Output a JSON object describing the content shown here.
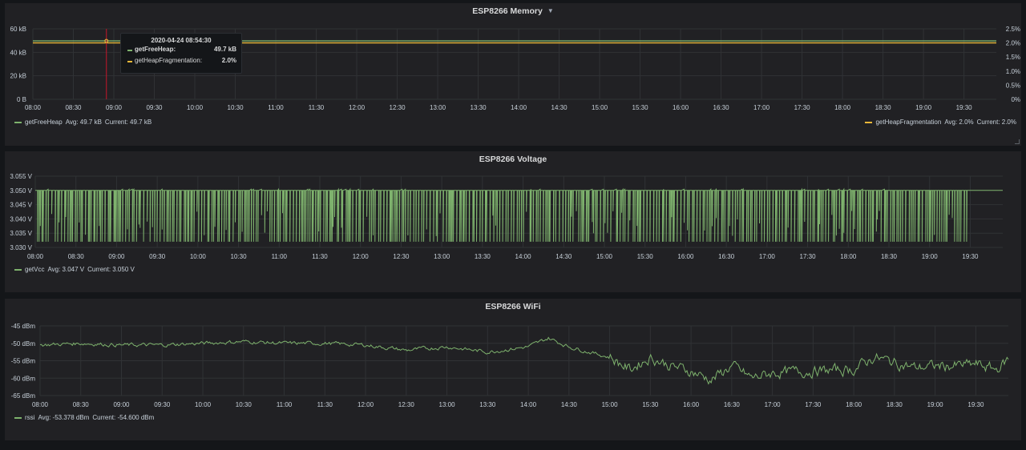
{
  "colors": {
    "green": "#7eb26d",
    "yellow": "#eab839",
    "red": "#c4162a",
    "grid": "#303235"
  },
  "x_axis_ticks": [
    "08:00",
    "08:30",
    "09:00",
    "09:30",
    "10:00",
    "10:30",
    "11:00",
    "11:30",
    "12:00",
    "12:30",
    "13:00",
    "13:30",
    "14:00",
    "14:30",
    "15:00",
    "15:30",
    "16:00",
    "16:30",
    "17:00",
    "17:30",
    "18:00",
    "18:30",
    "19:00",
    "19:30"
  ],
  "panels": {
    "memory": {
      "title": "ESP8266 Memory",
      "caret_icon": "caret-down-icon",
      "y_left_ticks": [
        "60 kB",
        "40 kB",
        "20 kB",
        "0 B"
      ],
      "y_right_ticks": [
        "2.5%",
        "2.0%",
        "1.5%",
        "1.0%",
        "0.5%",
        "0%"
      ],
      "legend_left": {
        "name": "getFreeHeap",
        "avg": "Avg: 49.7 kB",
        "current": "Current: 49.7 kB"
      },
      "legend_right": {
        "name": "getHeapFragmentation",
        "avg": "Avg: 2.0%",
        "current": "Current: 2.0%"
      },
      "tooltip": {
        "time": "2020-04-24 08:54:30",
        "rows": [
          {
            "name": "getFreeHeap:",
            "value": "49.7 kB"
          },
          {
            "name": "getHeapFragmentation:",
            "value": "2.0%"
          }
        ]
      }
    },
    "voltage": {
      "title": "ESP8266 Voltage",
      "y_ticks": [
        "3.055 V",
        "3.050 V",
        "3.045 V",
        "3.040 V",
        "3.035 V",
        "3.030 V"
      ],
      "legend": {
        "name": "getVcc",
        "avg": "Avg: 3.047 V",
        "current": "Current: 3.050 V"
      }
    },
    "wifi": {
      "title": "ESP8266 WiFi",
      "y_ticks": [
        "-45 dBm",
        "-50 dBm",
        "-55 dBm",
        "-60 dBm",
        "-65 dBm"
      ],
      "legend": {
        "name": "rssi",
        "avg": "Avg: -53.378 dBm",
        "current": "Current: -54.600 dBm"
      }
    }
  },
  "chart_data": [
    {
      "type": "line",
      "title": "ESP8266 Memory",
      "x_range": [
        "08:00",
        "19:54"
      ],
      "ylim": [
        0,
        60
      ],
      "y_unit": "kB",
      "y2lim": [
        0,
        2.5
      ],
      "y2_unit": "%",
      "legend_placement": "bottom",
      "series": [
        {
          "name": "getFreeHeap",
          "axis": "left",
          "x": [
            "08:00",
            "19:54"
          ],
          "values": [
            49.7,
            49.7
          ]
        },
        {
          "name": "getHeapFragmentation",
          "axis": "right",
          "x": [
            "08:00",
            "19:54"
          ],
          "values": [
            2.0,
            2.0
          ]
        }
      ],
      "annotations": [
        {
          "type": "crosshair",
          "time": "08:54:30"
        }
      ]
    },
    {
      "type": "line",
      "title": "ESP8266 Voltage",
      "x_range": [
        "08:00",
        "19:54"
      ],
      "ylim": [
        3.03,
        3.055
      ],
      "y_unit": "V",
      "legend_placement": "bottom",
      "series": [
        {
          "name": "getVcc",
          "high": 3.05,
          "low": 3.032,
          "dip_count": 420
        }
      ]
    },
    {
      "type": "line",
      "title": "ESP8266 WiFi",
      "x_range": [
        "08:00",
        "19:54"
      ],
      "ylim": [
        -65,
        -45
      ],
      "y_unit": "dBm",
      "legend_placement": "bottom",
      "series": [
        {
          "name": "rssi",
          "x": [
            "08:00",
            "08:30",
            "09:00",
            "09:30",
            "10:00",
            "10:30",
            "11:00",
            "11:30",
            "12:00",
            "12:30",
            "13:00",
            "13:30",
            "14:00",
            "14:15",
            "14:30",
            "15:00",
            "15:15",
            "15:30",
            "15:45",
            "16:00",
            "16:15",
            "16:30",
            "16:45",
            "17:00",
            "17:30",
            "18:00",
            "18:15",
            "18:30",
            "18:45",
            "19:00",
            "19:15",
            "19:30",
            "19:45",
            "19:54"
          ],
          "values": [
            -50.5,
            -50.0,
            -50.5,
            -50.5,
            -50.0,
            -49.5,
            -50.0,
            -50.0,
            -50.5,
            -52.0,
            -51.0,
            -52.5,
            -51.0,
            -48.5,
            -51.0,
            -54.0,
            -57.5,
            -54.0,
            -56.5,
            -58.0,
            -60.5,
            -56.5,
            -60.0,
            -58.5,
            -58.0,
            -57.5,
            -54.0,
            -55.5,
            -57.0,
            -56.5,
            -56.5,
            -56.0,
            -57.5,
            -54.6
          ]
        }
      ]
    }
  ]
}
